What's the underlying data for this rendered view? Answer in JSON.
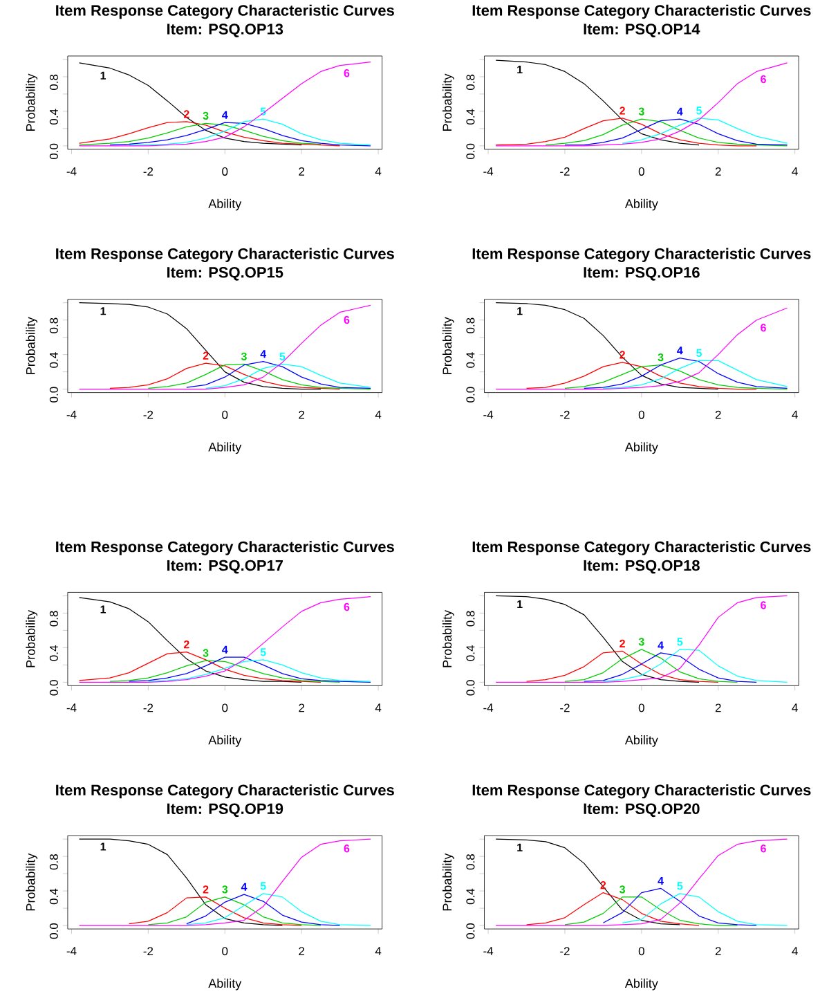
{
  "chart_data": [
    {
      "type": "line",
      "title": "Item Response Category Characteristic Curves",
      "subtitle": "Item: PSQ.OP13",
      "xlabel": "Ability",
      "ylabel": "Probability",
      "xlim": [
        -4.1,
        4.1
      ],
      "ylim": [
        -0.04,
        1.04
      ],
      "xticks": [
        -4,
        -2,
        0,
        2,
        4
      ],
      "yticks": [
        {
          "value": 0,
          "label": "0.0"
        },
        {
          "value": 0.2,
          "label": null
        },
        {
          "value": 0.4,
          "label": "0.4"
        },
        {
          "value": 0.6,
          "label": null
        },
        {
          "value": 0.8,
          "label": "0.8"
        },
        {
          "value": 1.0,
          "label": null
        }
      ],
      "x": [
        -3.8,
        -3,
        -2.5,
        -2,
        -1.5,
        -1,
        -0.5,
        0,
        0.5,
        1,
        1.5,
        2,
        2.5,
        3,
        3.8
      ],
      "series": [
        {
          "name": "1",
          "color": "#000000",
          "values": [
            0.96,
            0.9,
            0.82,
            0.7,
            0.52,
            0.33,
            0.18,
            0.09,
            0.05,
            0.03,
            0.02,
            0.01,
            null,
            null,
            null
          ]
        },
        {
          "name": "2",
          "color": "#ff0000",
          "values": [
            0.03,
            0.08,
            0.14,
            0.21,
            0.27,
            0.28,
            0.24,
            0.16,
            0.1,
            0.06,
            0.03,
            0.02,
            0.01,
            0,
            null
          ]
        },
        {
          "name": "3",
          "color": "#00cd00",
          "values": [
            0.01,
            0.03,
            0.05,
            0.09,
            0.15,
            0.22,
            0.26,
            0.24,
            0.18,
            0.11,
            0.06,
            0.03,
            0.02,
            null,
            null
          ]
        },
        {
          "name": "4",
          "color": "#0000ff",
          "values": [
            null,
            0.01,
            0.02,
            0.04,
            0.07,
            0.12,
            0.19,
            0.27,
            0.26,
            0.2,
            0.12,
            0.06,
            0.03,
            0.01,
            0
          ]
        },
        {
          "name": "5",
          "color": "#00ffff",
          "values": [
            null,
            null,
            0.01,
            0.01,
            0.02,
            0.04,
            0.09,
            0.17,
            0.28,
            0.31,
            0.25,
            0.14,
            0.07,
            0.03,
            0.01
          ]
        },
        {
          "name": "6",
          "color": "#ff00ff",
          "values": [
            0,
            0,
            0,
            0,
            0.01,
            0.02,
            0.05,
            0.1,
            0.22,
            0.38,
            0.55,
            0.72,
            0.86,
            0.93,
            0.97
          ]
        }
      ]
    },
    {
      "type": "line",
      "title": "Item Response Category Characteristic Curves",
      "subtitle": "Item: PSQ.OP14",
      "xlabel": "Ability",
      "ylabel": "Probability",
      "xlim": [
        -4.1,
        4.1
      ],
      "ylim": [
        -0.04,
        1.04
      ],
      "xticks": [
        -4,
        -2,
        0,
        2,
        4
      ],
      "yticks": [
        {
          "value": 0,
          "label": "0.0"
        },
        {
          "value": 0.2,
          "label": null
        },
        {
          "value": 0.4,
          "label": "0.4"
        },
        {
          "value": 0.6,
          "label": null
        },
        {
          "value": 0.8,
          "label": "0.8"
        },
        {
          "value": 1.0,
          "label": null
        }
      ],
      "x": [
        -3.8,
        -3,
        -2.5,
        -2,
        -1.5,
        -1,
        -0.5,
        0,
        0.5,
        1,
        1.5,
        2,
        2.5,
        3,
        3.8
      ],
      "series": [
        {
          "name": "1",
          "color": "#000000",
          "values": [
            0.99,
            0.97,
            0.94,
            0.86,
            0.72,
            0.52,
            0.3,
            0.14,
            0.07,
            0.03,
            0.01,
            null,
            null,
            null,
            null
          ]
        },
        {
          "name": "2",
          "color": "#ff0000",
          "values": [
            0.01,
            0.02,
            0.05,
            0.1,
            0.2,
            0.29,
            0.32,
            0.25,
            0.14,
            0.07,
            0.03,
            0.01,
            0,
            0,
            null
          ]
        },
        {
          "name": "3",
          "color": "#00cd00",
          "values": [
            null,
            null,
            0.01,
            0.03,
            0.06,
            0.13,
            0.24,
            0.31,
            0.28,
            0.18,
            0.09,
            0.04,
            0.02,
            0.01,
            0
          ]
        },
        {
          "name": "4",
          "color": "#0000ff",
          "values": [
            null,
            null,
            null,
            0.01,
            0.01,
            0.04,
            0.09,
            0.19,
            0.29,
            0.31,
            0.25,
            0.14,
            0.06,
            0.02,
            0.01
          ]
        },
        {
          "name": "5",
          "color": "#00ffff",
          "values": [
            null,
            null,
            null,
            null,
            null,
            null,
            0.03,
            0.07,
            0.14,
            0.24,
            0.32,
            0.3,
            0.2,
            0.11,
            0.03
          ]
        },
        {
          "name": "6",
          "color": "#ff00ff",
          "values": [
            0,
            0,
            0,
            0,
            0,
            0.01,
            0.02,
            0.04,
            0.08,
            0.17,
            0.3,
            0.5,
            0.72,
            0.86,
            0.96
          ]
        }
      ]
    },
    {
      "type": "line",
      "title": "Item Response Category Characteristic Curves",
      "subtitle": "Item: PSQ.OP15",
      "xlabel": "Ability",
      "ylabel": "Probability",
      "xlim": [
        -4.1,
        4.1
      ],
      "ylim": [
        -0.04,
        1.04
      ],
      "xticks": [
        -4,
        -2,
        0,
        2,
        4
      ],
      "yticks": [
        {
          "value": 0,
          "label": "0.0"
        },
        {
          "value": 0.2,
          "label": null
        },
        {
          "value": 0.4,
          "label": "0.4"
        },
        {
          "value": 0.6,
          "label": null
        },
        {
          "value": 0.8,
          "label": "0.8"
        },
        {
          "value": 1.0,
          "label": null
        }
      ],
      "x": [
        -3.8,
        -3,
        -2.5,
        -2,
        -1.5,
        -1,
        -0.5,
        0,
        0.5,
        1,
        1.5,
        2,
        2.5,
        3,
        3.8
      ],
      "series": [
        {
          "name": "1",
          "color": "#000000",
          "values": [
            1.0,
            0.99,
            0.98,
            0.95,
            0.87,
            0.7,
            0.45,
            0.2,
            0.08,
            0.03,
            0.01,
            0,
            0,
            null,
            null
          ]
        },
        {
          "name": "2",
          "color": "#ff0000",
          "values": [
            null,
            0.01,
            0.02,
            0.05,
            0.12,
            0.24,
            0.3,
            0.27,
            0.17,
            0.09,
            0.04,
            0.02,
            0.01,
            0,
            null
          ]
        },
        {
          "name": "3",
          "color": "#00cd00",
          "values": [
            null,
            null,
            null,
            0.01,
            0.03,
            0.07,
            0.17,
            0.28,
            0.29,
            0.21,
            0.11,
            0.05,
            0.02,
            0.01,
            0
          ]
        },
        {
          "name": "4",
          "color": "#0000ff",
          "values": [
            null,
            null,
            null,
            null,
            null,
            0.02,
            0.05,
            0.14,
            0.28,
            0.32,
            0.26,
            0.14,
            0.06,
            0.02,
            0.01
          ]
        },
        {
          "name": "5",
          "color": "#00ffff",
          "values": [
            null,
            null,
            null,
            null,
            null,
            null,
            0.01,
            0.04,
            0.12,
            0.24,
            0.29,
            0.26,
            0.16,
            0.07,
            0.02
          ]
        },
        {
          "name": "6",
          "color": "#ff00ff",
          "values": [
            0,
            0,
            0,
            0,
            0,
            0,
            0,
            0.02,
            0.05,
            0.14,
            0.31,
            0.53,
            0.74,
            0.89,
            0.97
          ]
        }
      ]
    },
    {
      "type": "line",
      "title": "Item Response Category Characteristic Curves",
      "subtitle": "Item: PSQ.OP16",
      "xlabel": "Ability",
      "ylabel": "Probability",
      "xlim": [
        -4.1,
        4.1
      ],
      "ylim": [
        -0.04,
        1.04
      ],
      "xticks": [
        -4,
        -2,
        0,
        2,
        4
      ],
      "yticks": [
        {
          "value": 0,
          "label": "0.0"
        },
        {
          "value": 0.2,
          "label": null
        },
        {
          "value": 0.4,
          "label": "0.4"
        },
        {
          "value": 0.6,
          "label": null
        },
        {
          "value": 0.8,
          "label": "0.8"
        },
        {
          "value": 1.0,
          "label": null
        }
      ],
      "x": [
        -3.8,
        -3,
        -2.5,
        -2,
        -1.5,
        -1,
        -0.5,
        0,
        0.5,
        1,
        1.5,
        2,
        2.5,
        3,
        3.8
      ],
      "series": [
        {
          "name": "1",
          "color": "#000000",
          "values": [
            1.0,
            0.99,
            0.97,
            0.92,
            0.82,
            0.62,
            0.37,
            0.16,
            0.06,
            0.02,
            0.01,
            0,
            null,
            null,
            null
          ]
        },
        {
          "name": "2",
          "color": "#ff0000",
          "values": [
            null,
            0.01,
            0.02,
            0.07,
            0.15,
            0.26,
            0.31,
            0.26,
            0.15,
            0.07,
            0.03,
            0.01,
            0,
            0,
            null
          ]
        },
        {
          "name": "3",
          "color": "#00cd00",
          "values": [
            null,
            null,
            null,
            0.01,
            0.03,
            0.08,
            0.17,
            0.26,
            0.28,
            0.21,
            0.11,
            0.05,
            0.02,
            0.01,
            0
          ]
        },
        {
          "name": "4",
          "color": "#0000ff",
          "values": [
            null,
            null,
            null,
            null,
            0.01,
            0.02,
            0.06,
            0.15,
            0.28,
            0.36,
            0.32,
            0.18,
            0.08,
            0.03,
            0.01
          ]
        },
        {
          "name": "5",
          "color": "#00ffff",
          "values": [
            null,
            null,
            null,
            null,
            null,
            0.01,
            0.02,
            0.05,
            0.12,
            0.24,
            0.33,
            0.33,
            0.22,
            0.11,
            0.03
          ]
        },
        {
          "name": "6",
          "color": "#ff00ff",
          "values": [
            0,
            0,
            0,
            0,
            0,
            0,
            0.01,
            0.02,
            0.04,
            0.09,
            0.19,
            0.4,
            0.63,
            0.8,
            0.94
          ]
        }
      ]
    },
    {
      "type": "line",
      "title": "Item Response Category Characteristic Curves",
      "subtitle": "Item: PSQ.OP17",
      "xlabel": "Ability",
      "ylabel": "Probability",
      "xlim": [
        -4.1,
        4.1
      ],
      "ylim": [
        -0.04,
        1.04
      ],
      "xticks": [
        -4,
        -2,
        0,
        2,
        4
      ],
      "yticks": [
        {
          "value": 0,
          "label": "0.0"
        },
        {
          "value": 0.2,
          "label": null
        },
        {
          "value": 0.4,
          "label": "0.4"
        },
        {
          "value": 0.6,
          "label": null
        },
        {
          "value": 0.8,
          "label": "0.8"
        },
        {
          "value": 1.0,
          "label": null
        }
      ],
      "x": [
        -3.8,
        -3,
        -2.5,
        -2,
        -1.5,
        -1,
        -0.5,
        0,
        0.5,
        1,
        1.5,
        2,
        2.5,
        3,
        3.8
      ],
      "series": [
        {
          "name": "1",
          "color": "#000000",
          "values": [
            0.98,
            0.93,
            0.85,
            0.7,
            0.48,
            0.27,
            0.13,
            0.06,
            0.03,
            0.01,
            0.01,
            0,
            null,
            null,
            null
          ]
        },
        {
          "name": "2",
          "color": "#ff0000",
          "values": [
            0.02,
            0.05,
            0.11,
            0.22,
            0.33,
            0.35,
            0.26,
            0.15,
            0.08,
            0.04,
            0.02,
            0.01,
            0,
            null,
            null
          ]
        },
        {
          "name": "3",
          "color": "#00cd00",
          "values": [
            null,
            0.01,
            0.02,
            0.05,
            0.11,
            0.19,
            0.25,
            0.24,
            0.17,
            0.1,
            0.05,
            0.02,
            0.01,
            0,
            null
          ]
        },
        {
          "name": "4",
          "color": "#0000ff",
          "values": [
            null,
            null,
            0.01,
            0.02,
            0.05,
            0.1,
            0.19,
            0.29,
            0.29,
            0.2,
            0.1,
            0.04,
            0.02,
            0.01,
            0
          ]
        },
        {
          "name": "5",
          "color": "#00ffff",
          "values": [
            null,
            null,
            null,
            0.01,
            0.02,
            0.04,
            0.09,
            0.16,
            0.24,
            0.26,
            0.2,
            0.11,
            0.05,
            0.02,
            0.01
          ]
        },
        {
          "name": "6",
          "color": "#ff00ff",
          "values": [
            0,
            0,
            0,
            0,
            0.01,
            0.03,
            0.07,
            0.13,
            0.26,
            0.45,
            0.64,
            0.82,
            0.92,
            0.96,
            0.99
          ]
        }
      ]
    },
    {
      "type": "line",
      "title": "Item Response Category Characteristic Curves",
      "subtitle": "Item: PSQ.OP18",
      "xlabel": "Ability",
      "ylabel": "Probability",
      "xlim": [
        -4.1,
        4.1
      ],
      "ylim": [
        -0.04,
        1.04
      ],
      "xticks": [
        -4,
        -2,
        0,
        2,
        4
      ],
      "yticks": [
        {
          "value": 0,
          "label": "0.0"
        },
        {
          "value": 0.2,
          "label": null
        },
        {
          "value": 0.4,
          "label": "0.4"
        },
        {
          "value": 0.6,
          "label": null
        },
        {
          "value": 0.8,
          "label": "0.8"
        },
        {
          "value": 1.0,
          "label": null
        }
      ],
      "x": [
        -3.8,
        -3,
        -2.5,
        -2,
        -1.5,
        -1,
        -0.5,
        0,
        0.5,
        1,
        1.5,
        2,
        2.5,
        3,
        3.8
      ],
      "series": [
        {
          "name": "1",
          "color": "#000000",
          "values": [
            1.0,
            0.99,
            0.96,
            0.9,
            0.78,
            0.52,
            0.24,
            0.09,
            0.03,
            0.01,
            0,
            null,
            null,
            null,
            null
          ]
        },
        {
          "name": "2",
          "color": "#ff0000",
          "values": [
            null,
            0.01,
            0.03,
            0.08,
            0.18,
            0.34,
            0.36,
            0.21,
            0.09,
            0.03,
            0.01,
            0,
            null,
            null,
            null
          ]
        },
        {
          "name": "3",
          "color": "#00cd00",
          "values": [
            null,
            null,
            null,
            0.01,
            0.03,
            0.11,
            0.27,
            0.38,
            0.28,
            0.12,
            0.04,
            0.01,
            0,
            null,
            null
          ]
        },
        {
          "name": "4",
          "color": "#0000ff",
          "values": [
            null,
            null,
            null,
            null,
            0.01,
            0.02,
            0.09,
            0.21,
            0.34,
            0.3,
            0.15,
            0.05,
            0.01,
            0,
            null
          ]
        },
        {
          "name": "5",
          "color": "#00ffff",
          "values": [
            null,
            null,
            null,
            null,
            null,
            0.01,
            0.03,
            0.08,
            0.21,
            0.38,
            0.37,
            0.19,
            0.07,
            0.02,
            0
          ]
        },
        {
          "name": "6",
          "color": "#ff00ff",
          "values": [
            0,
            0,
            0,
            0,
            0,
            0,
            0.01,
            0.03,
            0.05,
            0.16,
            0.43,
            0.75,
            0.92,
            0.98,
            1.0
          ]
        }
      ]
    },
    {
      "type": "line",
      "title": "Item Response Category Characteristic Curves",
      "subtitle": "Item: PSQ.OP19",
      "xlabel": "Ability",
      "ylabel": "Probability",
      "xlim": [
        -4.1,
        4.1
      ],
      "ylim": [
        -0.04,
        1.04
      ],
      "xticks": [
        -4,
        -2,
        0,
        2,
        4
      ],
      "yticks": [
        {
          "value": 0,
          "label": "0.0"
        },
        {
          "value": 0.2,
          "label": null
        },
        {
          "value": 0.4,
          "label": "0.4"
        },
        {
          "value": 0.6,
          "label": null
        },
        {
          "value": 0.8,
          "label": "0.8"
        },
        {
          "value": 1.0,
          "label": null
        }
      ],
      "x": [
        -3.8,
        -3,
        -2.5,
        -2,
        -1.5,
        -1,
        -0.5,
        0,
        0.5,
        1,
        1.5,
        2,
        2.5,
        3,
        3.8
      ],
      "series": [
        {
          "name": "1",
          "color": "#000000",
          "values": [
            1.0,
            1.0,
            0.98,
            0.94,
            0.82,
            0.55,
            0.24,
            0.08,
            0.03,
            0.01,
            0,
            null,
            null,
            null,
            null
          ]
        },
        {
          "name": "2",
          "color": "#ff0000",
          "values": [
            null,
            null,
            0.02,
            0.05,
            0.15,
            0.32,
            0.33,
            0.2,
            0.09,
            0.03,
            0.01,
            0,
            null,
            null,
            null
          ]
        },
        {
          "name": "3",
          "color": "#00cd00",
          "values": [
            null,
            null,
            null,
            0.01,
            0.03,
            0.1,
            0.27,
            0.33,
            0.24,
            0.1,
            0.03,
            0.01,
            0,
            null,
            null
          ]
        },
        {
          "name": "4",
          "color": "#0000ff",
          "values": [
            null,
            null,
            null,
            null,
            null,
            0.02,
            0.11,
            0.27,
            0.36,
            0.28,
            0.12,
            0.04,
            0.01,
            0,
            null
          ]
        },
        {
          "name": "5",
          "color": "#00ffff",
          "values": [
            null,
            null,
            null,
            null,
            null,
            0.01,
            0.03,
            0.09,
            0.23,
            0.37,
            0.33,
            0.16,
            0.05,
            0.01,
            0
          ]
        },
        {
          "name": "6",
          "color": "#ff00ff",
          "values": [
            0,
            0,
            0,
            0,
            0,
            0,
            0.01,
            0.03,
            0.06,
            0.22,
            0.51,
            0.79,
            0.94,
            0.98,
            1.0
          ]
        }
      ]
    },
    {
      "type": "line",
      "title": "Item Response Category Characteristic Curves",
      "subtitle": "Item: PSQ.OP20",
      "xlabel": "Ability",
      "ylabel": "Probability",
      "xlim": [
        -4.1,
        4.1
      ],
      "ylim": [
        -0.04,
        1.04
      ],
      "xticks": [
        -4,
        -2,
        0,
        2,
        4
      ],
      "yticks": [
        {
          "value": 0,
          "label": "0.0"
        },
        {
          "value": 0.2,
          "label": null
        },
        {
          "value": 0.4,
          "label": "0.4"
        },
        {
          "value": 0.6,
          "label": null
        },
        {
          "value": 0.8,
          "label": "0.8"
        },
        {
          "value": 1.0,
          "label": null
        }
      ],
      "x": [
        -3.8,
        -3,
        -2.5,
        -2,
        -1.5,
        -1,
        -0.5,
        0,
        0.5,
        1,
        1.5,
        2,
        2.5,
        3,
        3.8
      ],
      "series": [
        {
          "name": "1",
          "color": "#000000",
          "values": [
            1.0,
            0.99,
            0.97,
            0.9,
            0.72,
            0.45,
            0.18,
            0.06,
            0.02,
            0.01,
            null,
            null,
            null,
            null,
            null
          ]
        },
        {
          "name": "2",
          "color": "#ff0000",
          "values": [
            null,
            0.01,
            0.03,
            0.09,
            0.24,
            0.38,
            0.3,
            0.14,
            0.05,
            0.02,
            0,
            null,
            null,
            null,
            null
          ]
        },
        {
          "name": "3",
          "color": "#00cd00",
          "values": [
            null,
            null,
            null,
            0.01,
            0.04,
            0.14,
            0.33,
            0.33,
            0.18,
            0.06,
            0.02,
            0,
            0,
            null,
            null
          ]
        },
        {
          "name": "4",
          "color": "#0000ff",
          "values": [
            null,
            null,
            null,
            null,
            null,
            0.03,
            0.15,
            0.38,
            0.43,
            0.28,
            0.11,
            0.03,
            0.01,
            0,
            null
          ]
        },
        {
          "name": "5",
          "color": "#00ffff",
          "values": [
            null,
            null,
            null,
            null,
            null,
            null,
            0.03,
            0.07,
            0.25,
            0.37,
            0.33,
            0.16,
            0.05,
            0.01,
            0
          ]
        },
        {
          "name": "6",
          "color": "#ff00ff",
          "values": [
            0,
            0,
            0,
            0,
            0,
            0,
            0.01,
            0.02,
            0.07,
            0.26,
            0.54,
            0.81,
            0.94,
            0.98,
            1.0
          ]
        }
      ]
    }
  ]
}
